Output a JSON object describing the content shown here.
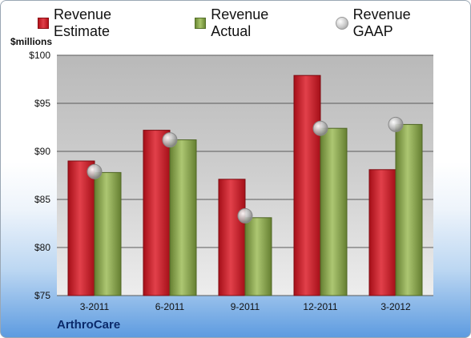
{
  "chart_data": {
    "type": "bar",
    "categories": [
      "3-2011",
      "6-2011",
      "9-2011",
      "12-2011",
      "3-2012"
    ],
    "series": [
      {
        "name": "Revenue Estimate",
        "values": [
          89.0,
          92.2,
          87.1,
          97.9,
          88.1
        ],
        "color": "#c8202a"
      },
      {
        "name": "Revenue Actual",
        "values": [
          87.8,
          91.2,
          83.1,
          92.4,
          92.8
        ],
        "color": "#8fae50"
      },
      {
        "name": "Revenue GAAP",
        "values": [
          87.9,
          91.2,
          83.3,
          92.4,
          92.8
        ],
        "color": "#c0c0c0",
        "marker": "circle"
      }
    ],
    "ylabel": "$millions",
    "ylim": [
      75,
      100
    ],
    "yticks": [
      "$75",
      "$80",
      "$85",
      "$90",
      "$95",
      "$100"
    ],
    "grid": true,
    "legend_position": "top"
  },
  "company": "ArthroCare"
}
